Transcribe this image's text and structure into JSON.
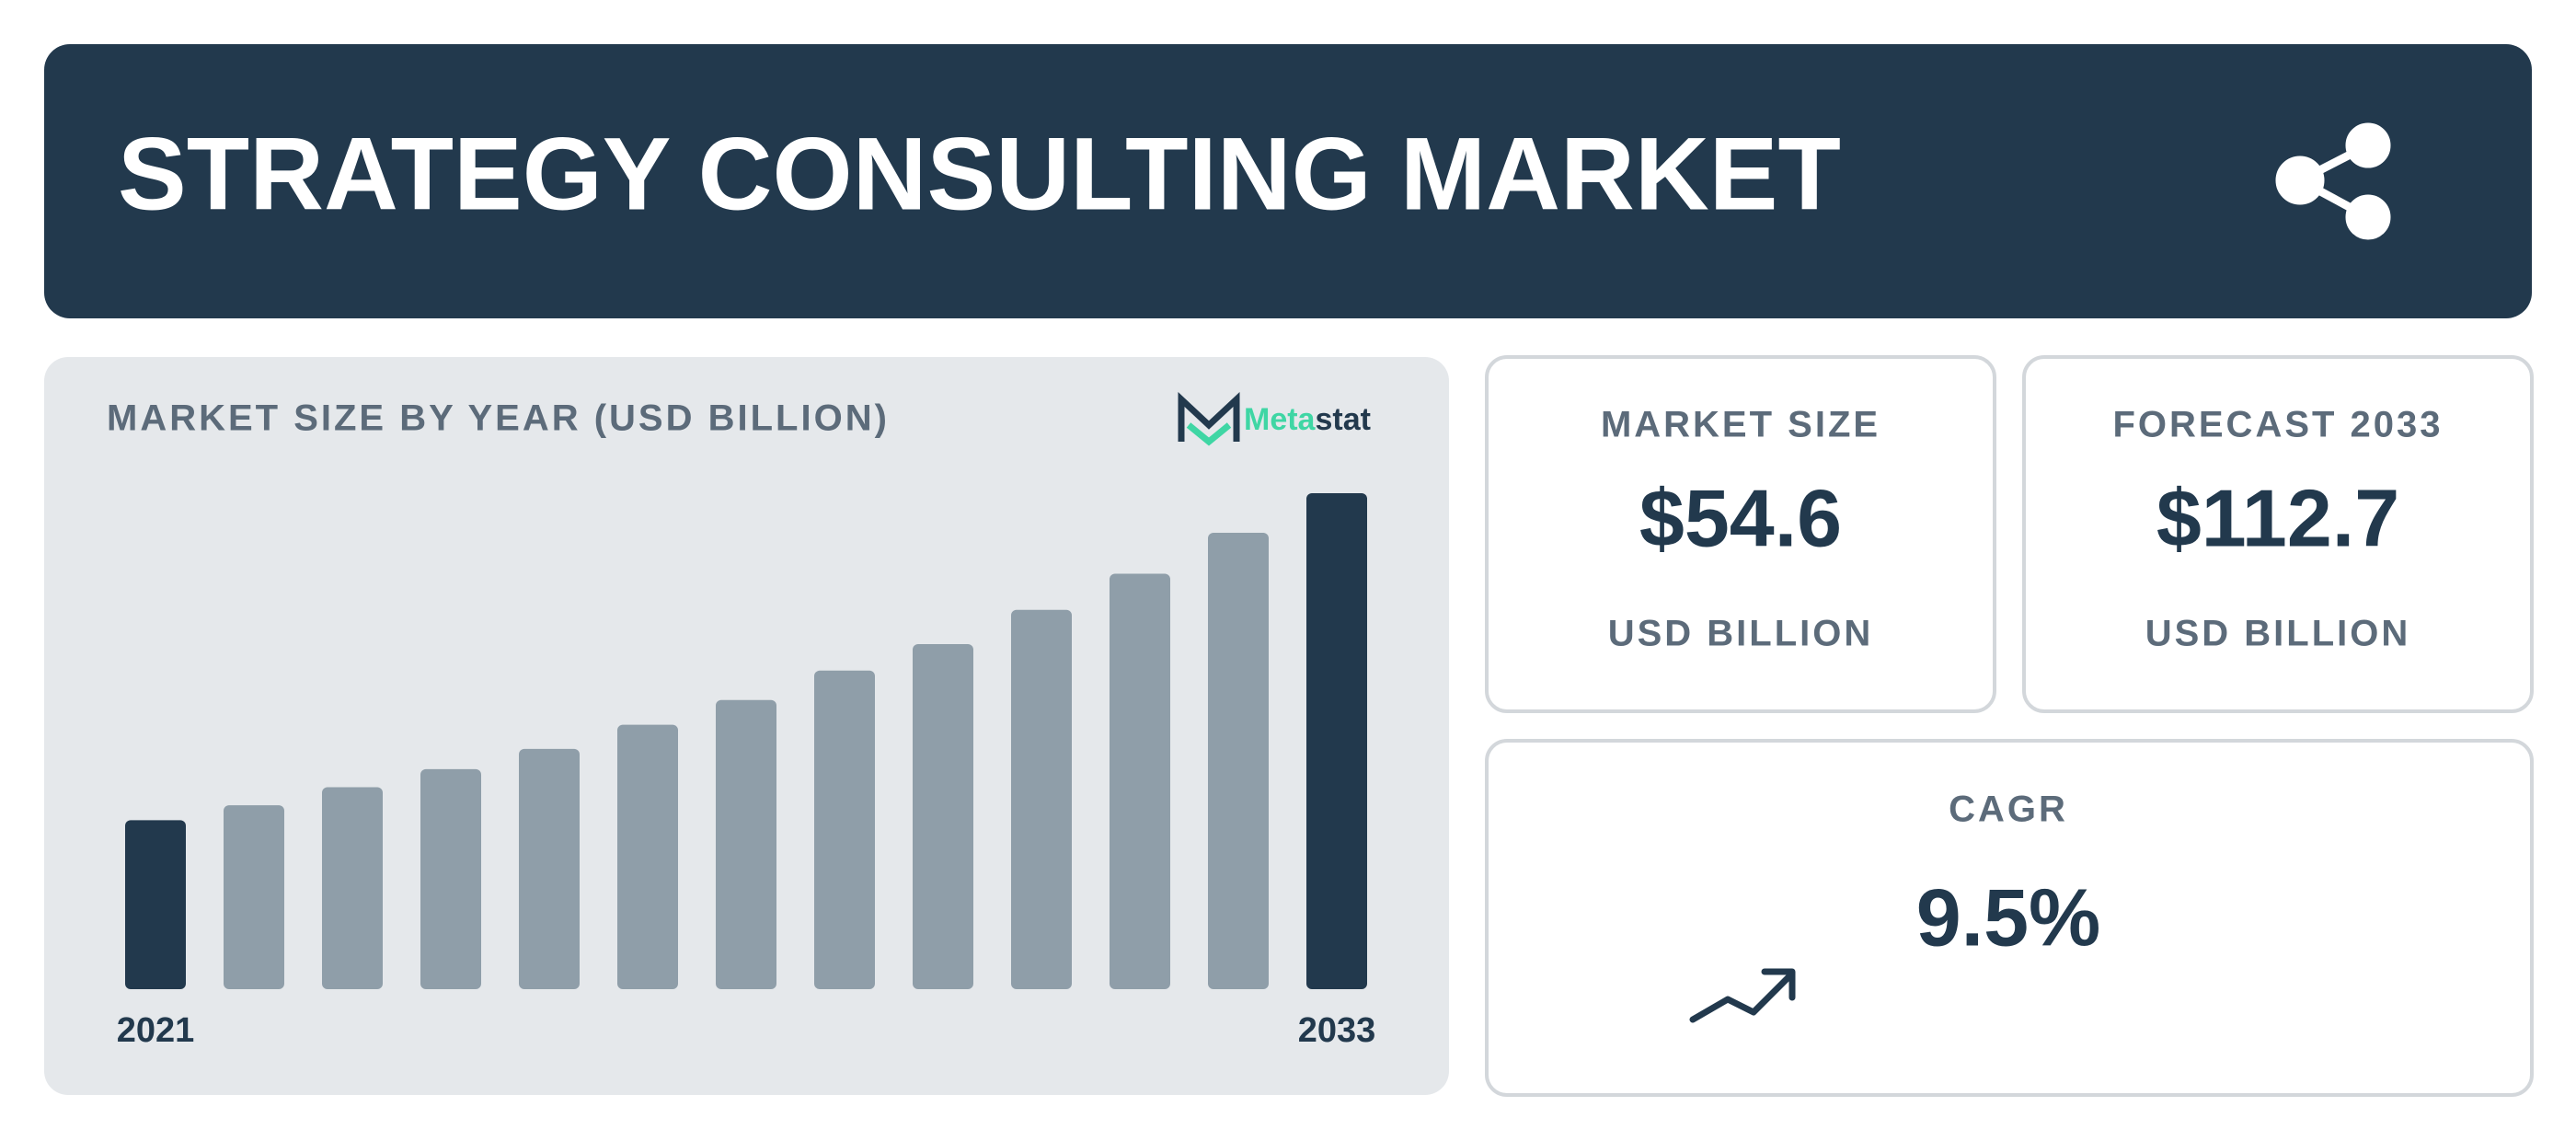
{
  "header": {
    "title": "STRATEGY CONSULTING MARKET"
  },
  "chart_data": {
    "type": "bar",
    "title": "MARKET SIZE BY YEAR (USD BILLION)",
    "categories": [
      "2021",
      null,
      null,
      null,
      null,
      null,
      null,
      null,
      null,
      null,
      null,
      null,
      "2033"
    ],
    "values": [
      38.4,
      41.8,
      45.9,
      50.0,
      54.6,
      60.1,
      65.7,
      72.4,
      78.4,
      86.2,
      94.4,
      103.7,
      112.7
    ],
    "colors": [
      "#22394d",
      "#8f9ea9",
      "#8f9ea9",
      "#8f9ea9",
      "#8f9ea9",
      "#8f9ea9",
      "#8f9ea9",
      "#8f9ea9",
      "#8f9ea9",
      "#8f9ea9",
      "#8f9ea9",
      "#8f9ea9",
      "#22394d"
    ]
  },
  "logo": {
    "parts": [
      "Meta",
      "stat"
    ]
  },
  "cards": [
    {
      "label": "MARKET SIZE",
      "value": "$54.6",
      "unit": "USD BILLION"
    },
    {
      "label": "FORECAST 2033",
      "value": "$112.7",
      "unit": "USD BILLION"
    },
    {
      "label": "CAGR",
      "value": "9.5%"
    }
  ]
}
